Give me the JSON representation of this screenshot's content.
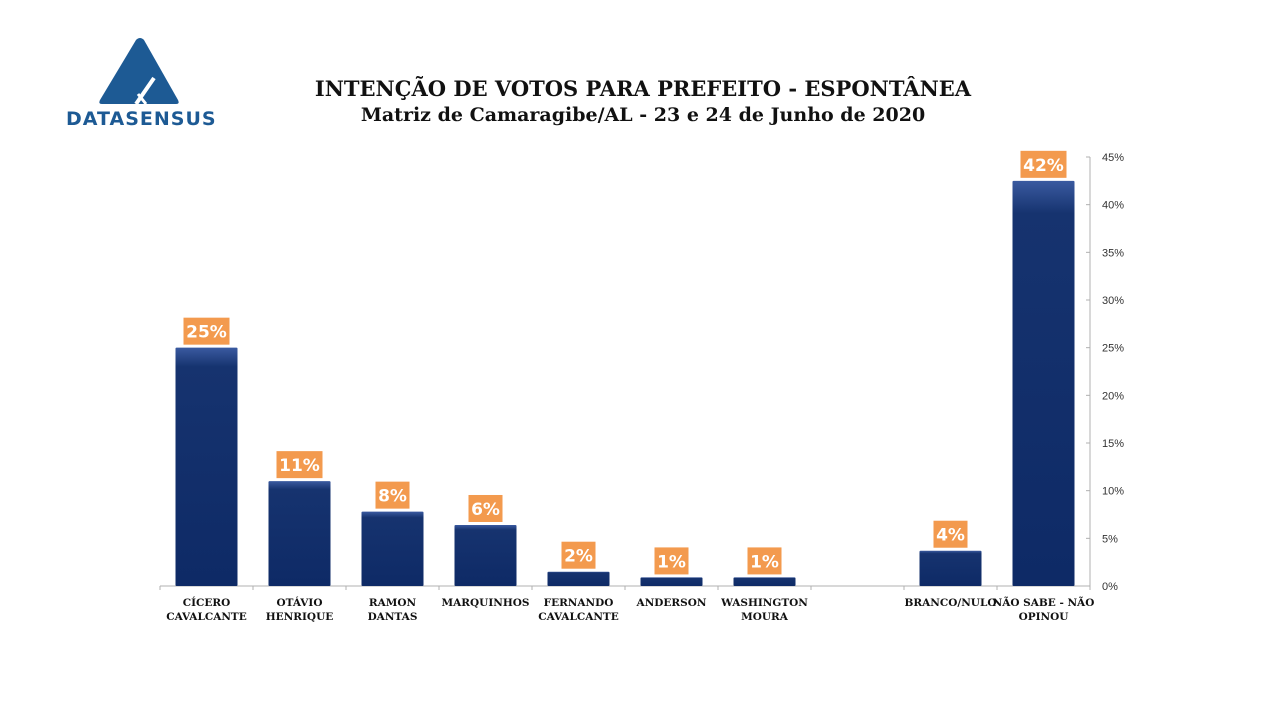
{
  "logo": {
    "text": "DATASENSUS",
    "icon": "triangle-mountain-logo-icon",
    "color": "#1d5a94"
  },
  "colors": {
    "bar": "#0e2a66",
    "bar_highlight": "#3a5aa0",
    "label_bg": "#f39a4e",
    "axis": "#b0b0b0"
  },
  "chart_data": {
    "type": "bar",
    "title": "INTENÇÃO DE VOTOS PARA PREFEITO - ESPONTÂNEA",
    "subtitle": "Matriz de Camaragibe/AL - 23 e 24 de  Junho de 2020",
    "xlabel": "",
    "ylabel": "",
    "ylim": [
      0,
      45
    ],
    "y_axis_side": "right",
    "y_ticks": [
      0,
      5,
      10,
      15,
      20,
      25,
      30,
      35,
      40,
      45
    ],
    "y_tick_labels": [
      "0%",
      "5%",
      "10%",
      "15%",
      "20%",
      "25%",
      "30%",
      "35%",
      "40%",
      "45%"
    ],
    "grid": false,
    "legend": "none",
    "categories": [
      [
        "CÍCERO",
        "CAVALCANTE"
      ],
      [
        "OTÁVIO",
        "HENRIQUE"
      ],
      [
        "RAMON",
        "DANTAS"
      ],
      [
        "MARQUINHOS"
      ],
      [
        "FERNANDO",
        "CAVALCANTE"
      ],
      [
        "ANDERSON"
      ],
      [
        "WASHINGTON",
        "MOURA"
      ],
      [
        ""
      ],
      [
        "BRANCO/NULO"
      ],
      [
        "NÃO SABE - NÃO",
        "OPINOU"
      ]
    ],
    "values": [
      25.0,
      11.0,
      7.8,
      6.4,
      1.5,
      0.9,
      0.9,
      null,
      3.7,
      42.5
    ],
    "data_labels": [
      "25%",
      "11%",
      "8%",
      "6%",
      "2%",
      "1%",
      "1%",
      "",
      "4%",
      "42%"
    ]
  }
}
